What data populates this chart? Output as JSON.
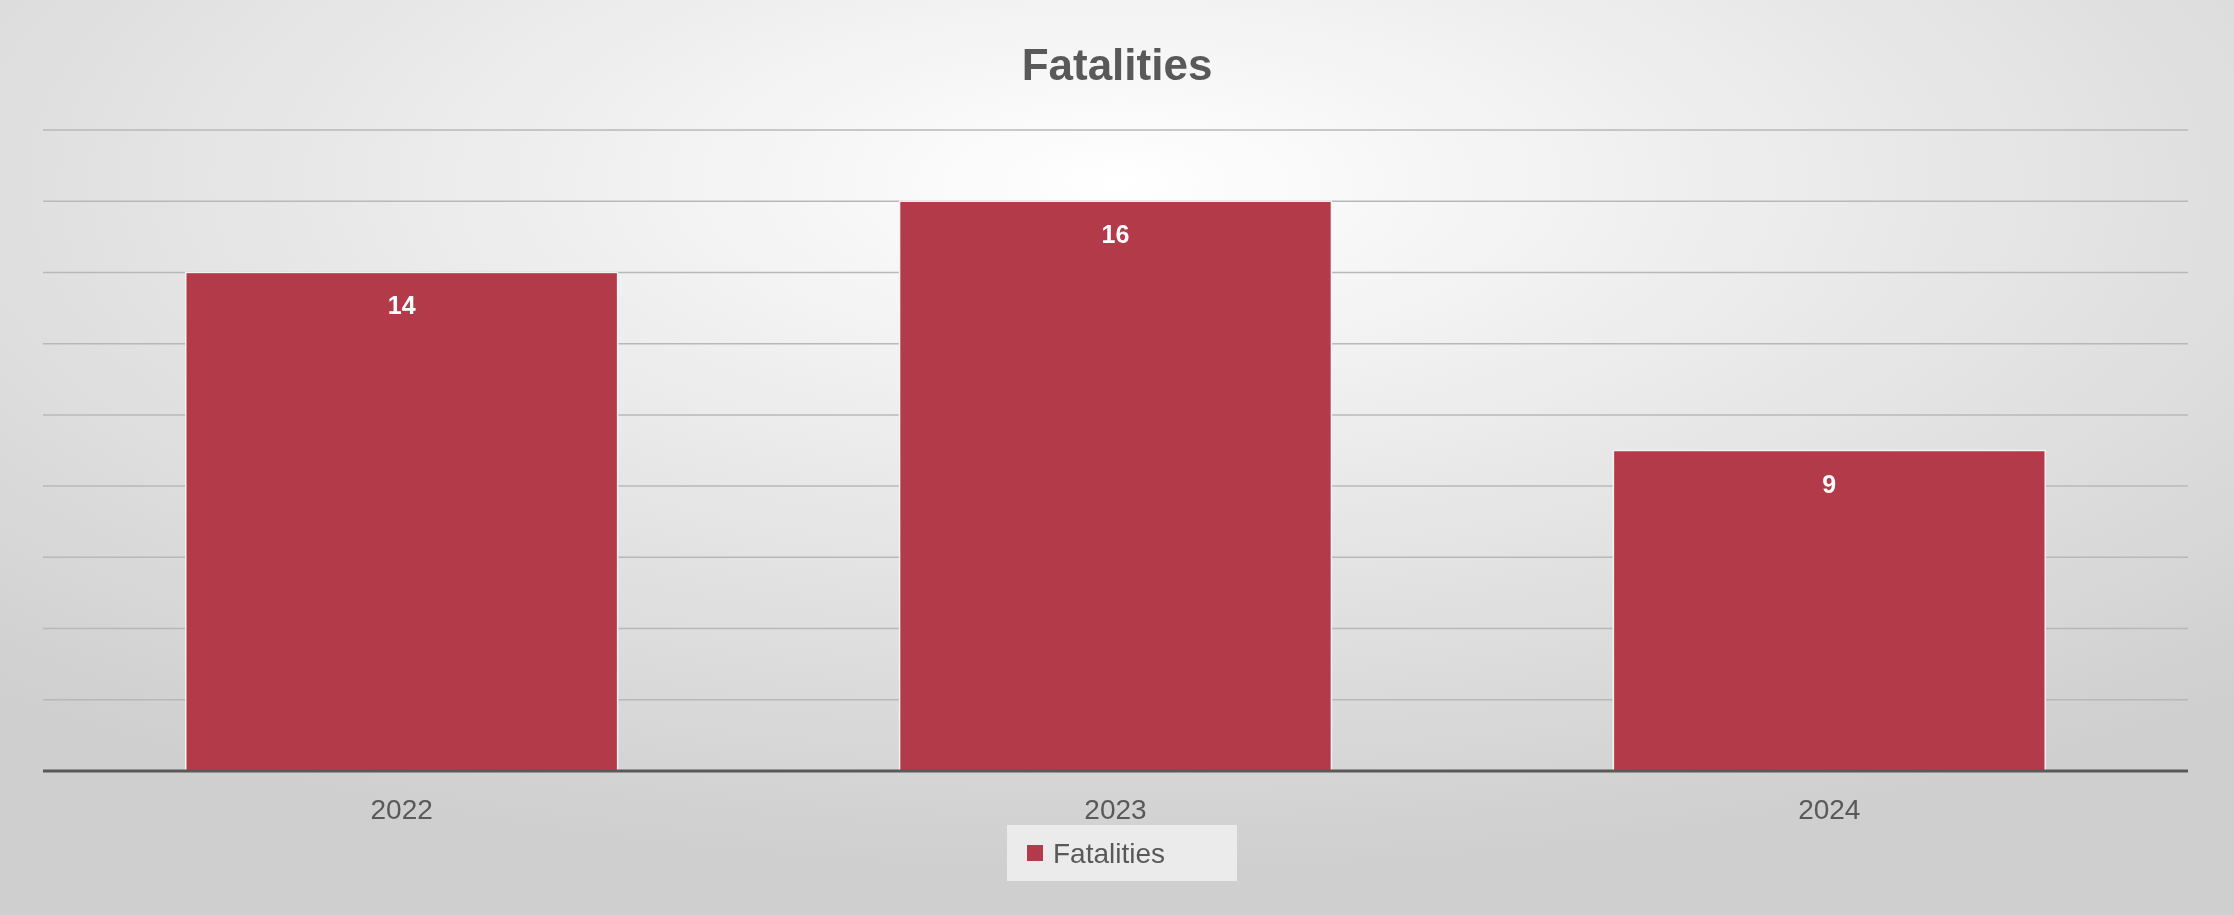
{
  "chart_data": {
    "type": "bar",
    "title": "Fatalities",
    "categories": [
      "2022",
      "2023",
      "2024"
    ],
    "series": [
      {
        "name": "Fatalities",
        "color": "#b33a48",
        "values": [
          14,
          16,
          9
        ]
      }
    ],
    "ylim": [
      0,
      18
    ],
    "yticks": [
      {
        "value": 0,
        "label": null
      },
      {
        "value": 2,
        "label": null
      },
      {
        "value": 4,
        "label": null
      },
      {
        "value": 6,
        "label": null
      },
      {
        "value": 8,
        "label": null
      },
      {
        "value": 10,
        "label": null
      },
      {
        "value": 12,
        "label": null
      },
      {
        "value": 14,
        "label": null
      },
      {
        "value": 16,
        "label": null
      },
      {
        "value": 18,
        "label": null
      }
    ],
    "tick_labels": "x",
    "grid": "y",
    "data_labels": true,
    "legend": "bottom"
  }
}
